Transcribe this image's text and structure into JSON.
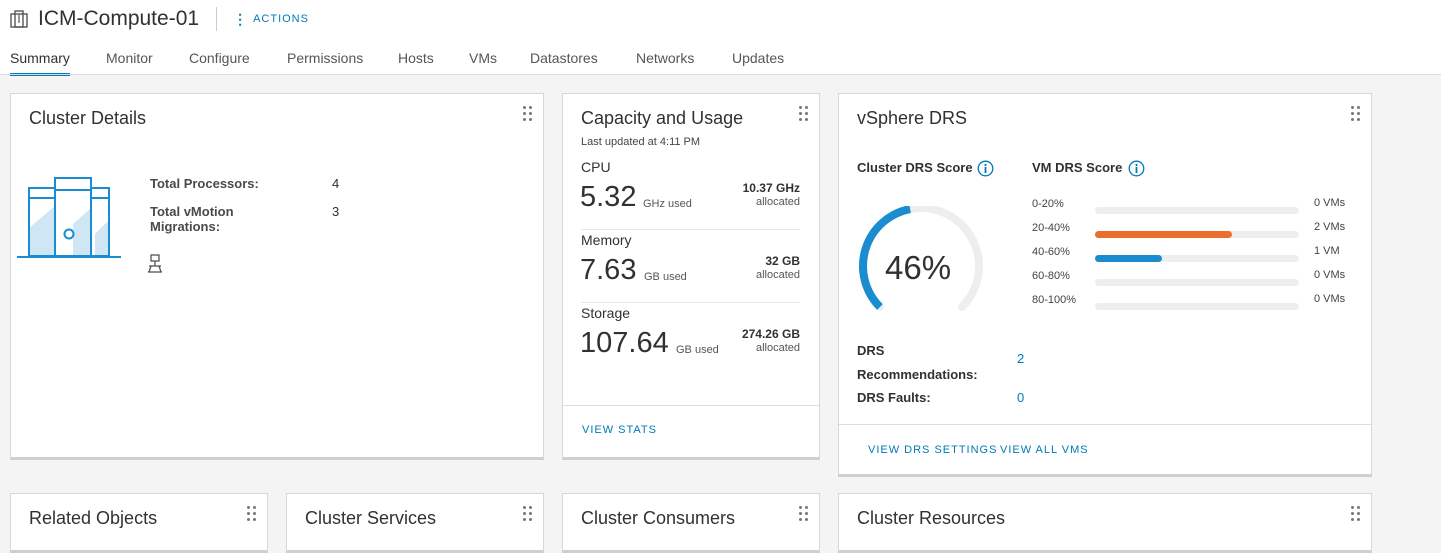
{
  "header": {
    "title": "ICM-Compute-01",
    "actions_label": "ACTIONS",
    "tabs": [
      {
        "label": "Summary",
        "active": true
      },
      {
        "label": "Monitor"
      },
      {
        "label": "Configure"
      },
      {
        "label": "Permissions"
      },
      {
        "label": "Hosts"
      },
      {
        "label": "VMs"
      },
      {
        "label": "Datastores"
      },
      {
        "label": "Networks"
      },
      {
        "label": "Updates"
      }
    ]
  },
  "cluster_details": {
    "title": "Cluster Details",
    "fields": [
      {
        "label": "Total Processors:",
        "value": "4"
      },
      {
        "label_line1": "Total vMotion",
        "label_line2": "Migrations:",
        "value": "3"
      }
    ]
  },
  "capacity": {
    "title": "Capacity and Usage",
    "updated": "Last updated at 4:11 PM",
    "cpu": {
      "name": "CPU",
      "value": "5.32",
      "unit": "GHz used",
      "allocated": "10.37 GHz",
      "allocated_label": "allocated"
    },
    "memory": {
      "name": "Memory",
      "value": "7.63",
      "unit": "GB used",
      "allocated": "32 GB",
      "allocated_label": "allocated"
    },
    "storage": {
      "name": "Storage",
      "value": "107.64",
      "unit": "GB used",
      "allocated": "274.26 GB",
      "allocated_label": "allocated"
    },
    "view_stats": "VIEW STATS"
  },
  "drs": {
    "title": "vSphere DRS",
    "cluster_score_label": "Cluster DRS Score",
    "vm_score_label": "VM DRS Score",
    "score_text": "46%",
    "score_fraction": 0.46,
    "buckets": [
      {
        "range": "0-20%",
        "count": "0 VMs",
        "fraction": 0,
        "color": "#ee6d2d"
      },
      {
        "range": "20-40%",
        "count": "2 VMs",
        "fraction": 0.67,
        "color": "#ee6d2d"
      },
      {
        "range": "40-60%",
        "count": "1 VM",
        "fraction": 0.33,
        "color": "#1a8cd0"
      },
      {
        "range": "60-80%",
        "count": "0 VMs",
        "fraction": 0,
        "color": "#1a8cd0"
      },
      {
        "range": "80-100%",
        "count": "0 VMs",
        "fraction": 0,
        "color": "#1a8cd0"
      }
    ],
    "recommendations_line1": "DRS",
    "recommendations_line2": "Recommendations:",
    "recommendations_value": "2",
    "faults_label": "DRS Faults:",
    "faults_value": "0",
    "view_settings": "VIEW DRS SETTINGS",
    "view_all_vms": "VIEW ALL VMS",
    "colors": {
      "gauge": "#1a8cd0",
      "track": "#eeeeee"
    }
  },
  "bottom_cards": {
    "related": "Related Objects",
    "services": "Cluster Services",
    "consumers": "Cluster Consumers",
    "resources": "Cluster Resources"
  }
}
